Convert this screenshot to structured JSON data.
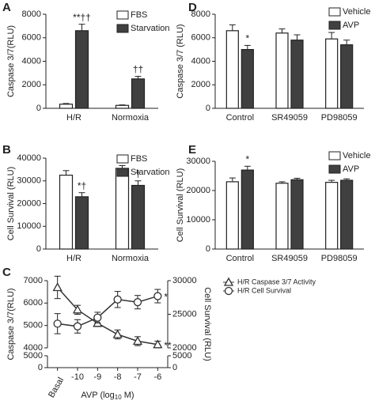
{
  "chart_data": [
    {
      "type": "bar",
      "panel": "A",
      "ylabel": "Caspase 3/7(RLU)",
      "categories": [
        "H/R",
        "Normoxia"
      ],
      "series": [
        {
          "name": "FBS",
          "color": "#ffffff",
          "values": [
            350,
            250
          ],
          "errors": [
            60,
            40
          ]
        },
        {
          "name": "Starvation",
          "color": "#404040",
          "values": [
            6600,
            2500
          ],
          "errors": [
            550,
            220
          ]
        }
      ],
      "ylim": [
        0,
        8000
      ],
      "yticks": [
        0,
        2000,
        4000,
        6000,
        8000
      ],
      "annotations": [
        "**††",
        "††"
      ],
      "legend": "upper right"
    },
    {
      "type": "bar",
      "panel": "B",
      "ylabel": "Cell Survival (RLU)",
      "categories": [
        "H/R",
        "Normoxia"
      ],
      "series": [
        {
          "name": "FBS",
          "color": "#ffffff",
          "values": [
            32500,
            35500
          ],
          "errors": [
            2000,
            1200
          ]
        },
        {
          "name": "Starvation",
          "color": "#404040",
          "values": [
            23000,
            28000
          ],
          "errors": [
            1800,
            2000
          ]
        }
      ],
      "ylim": [
        0,
        40000
      ],
      "yticks": [
        0,
        10000,
        20000,
        30000,
        40000
      ],
      "annotations": [
        "*†",
        "†"
      ],
      "legend": "upper right"
    },
    {
      "type": "line",
      "panel": "C",
      "ylabel": "Caspase 3/7(RLU)",
      "y2label": "Cell Survival (RLU)",
      "xlabel": [
        "AVP (log",
        "10",
        " M)"
      ],
      "categories": [
        "Basal",
        "-10",
        "-9",
        "-8",
        "-7",
        "-6"
      ],
      "series": [
        {
          "name": "H/R Caspase 3/7 Activity",
          "color": "#333333",
          "marker": "triangle",
          "values": [
            6700,
            5700,
            5100,
            4600,
            4300,
            4150
          ],
          "errors": [
            500,
            200,
            150,
            200,
            200,
            150
          ]
        },
        {
          "name": "H/R Cell Survival",
          "color": "#333333",
          "marker": "circle",
          "axis": "y2",
          "values": [
            23600,
            23200,
            24500,
            27200,
            26800,
            27700
          ],
          "errors": [
            1500,
            1000,
            800,
            1200,
            1000,
            1000
          ]
        }
      ],
      "ylim": [
        4000,
        7000
      ],
      "yticks": [
        4000,
        5000,
        6000,
        7000
      ],
      "ybreak_ticks": [
        0,
        5000
      ],
      "y2lim": [
        20000,
        30000
      ],
      "y2ticks": [
        20000,
        25000,
        30000
      ],
      "y2break_ticks": [
        0,
        5000
      ],
      "annotations": [
        "*",
        "**"
      ],
      "legend": "upper right"
    },
    {
      "type": "bar",
      "panel": "D",
      "ylabel": "Caspase 3/7 (RLU)",
      "categories": [
        "Control",
        "SR49059",
        "PD98059"
      ],
      "series": [
        {
          "name": "Vehicle",
          "color": "#ffffff",
          "values": [
            6600,
            6400,
            5900
          ],
          "errors": [
            500,
            350,
            550
          ]
        },
        {
          "name": "AVP",
          "color": "#404040",
          "values": [
            5000,
            5800,
            5400
          ],
          "errors": [
            350,
            450,
            400
          ]
        }
      ],
      "ylim": [
        0,
        8000
      ],
      "yticks": [
        0,
        2000,
        4000,
        6000,
        8000
      ],
      "annotations": [
        "*"
      ],
      "legend": "upper right"
    },
    {
      "type": "bar",
      "panel": "E",
      "ylabel": "Cell Survival (RLU)",
      "categories": [
        "Control",
        "SR49059",
        "PD98059"
      ],
      "series": [
        {
          "name": "Vehicle",
          "color": "#ffffff",
          "values": [
            23000,
            22500,
            22800
          ],
          "errors": [
            1300,
            500,
            700
          ]
        },
        {
          "name": "AVP",
          "color": "#404040",
          "values": [
            27000,
            23700,
            23500
          ],
          "errors": [
            1300,
            500,
            500
          ]
        }
      ],
      "ylim": [
        0,
        30000
      ],
      "yticks": [
        0,
        10000,
        20000,
        30000
      ],
      "annotations": [
        "*"
      ],
      "legend": "upper right"
    }
  ]
}
